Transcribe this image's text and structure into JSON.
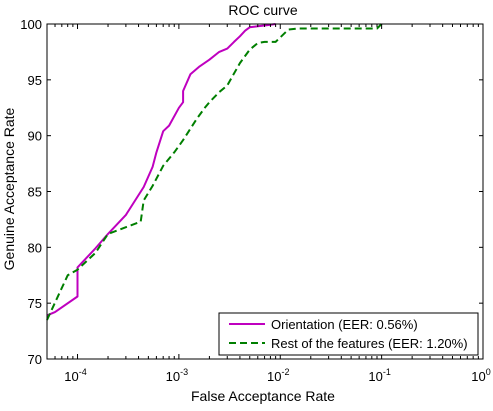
{
  "chart_data": {
    "type": "line",
    "title": "ROC curve",
    "xlabel": "False Acceptance Rate",
    "ylabel": "Genuine Acceptance Rate",
    "xscale": "log",
    "xlim": [
      5e-05,
      1
    ],
    "ylim": [
      70,
      100
    ],
    "x_ticks": [
      {
        "value": 0.0001,
        "base": "10",
        "exp": "-4"
      },
      {
        "value": 0.001,
        "base": "10",
        "exp": "-3"
      },
      {
        "value": 0.01,
        "base": "10",
        "exp": "-2"
      },
      {
        "value": 0.1,
        "base": "10",
        "exp": "-1"
      },
      {
        "value": 1,
        "base": "10",
        "exp": "0"
      }
    ],
    "y_ticks": [
      {
        "value": 70,
        "label": "70"
      },
      {
        "value": 75,
        "label": "75"
      },
      {
        "value": 80,
        "label": "80"
      },
      {
        "value": 85,
        "label": "85"
      },
      {
        "value": 90,
        "label": "90"
      },
      {
        "value": 95,
        "label": "95"
      },
      {
        "value": 100,
        "label": "100"
      }
    ],
    "grid": false,
    "legend_position": "bottom-right",
    "series": [
      {
        "name": "Orientation (EER: 0.56%)",
        "color": "#bf00bf",
        "style": "solid",
        "x": [
          5e-05,
          6e-05,
          0.0001,
          0.0001,
          0.00015,
          0.0002,
          0.0003,
          0.00045,
          0.00055,
          0.0006,
          0.0007,
          0.0008,
          0.001,
          0.0011,
          0.0011,
          0.0013,
          0.0016,
          0.002,
          0.0025,
          0.003,
          0.0035,
          0.004,
          0.0045,
          0.005,
          0.006,
          0.0075,
          0.009
        ],
        "y": [
          73.9,
          74.2,
          75.6,
          78.2,
          79.9,
          81.2,
          82.9,
          85.4,
          87.2,
          88.5,
          90.4,
          90.9,
          92.5,
          93.0,
          94.0,
          95.5,
          96.2,
          96.8,
          97.5,
          97.8,
          98.4,
          98.9,
          99.4,
          99.7,
          99.8,
          99.9,
          100.0
        ]
      },
      {
        "name": "Rest of the features (EER: 1.20%)",
        "color": "#007f00",
        "style": "dashed",
        "x": [
          5e-05,
          8e-05,
          0.0001,
          0.00015,
          0.0002,
          0.0003,
          0.00042,
          0.00045,
          0.00055,
          0.0007,
          0.0009,
          0.0011,
          0.0015,
          0.0018,
          0.002,
          0.0025,
          0.003,
          0.004,
          0.005,
          0.006,
          0.007,
          0.008,
          0.009,
          0.012,
          0.015,
          0.03,
          0.09,
          0.1
        ],
        "y": [
          73.5,
          77.5,
          78.0,
          79.5,
          81.2,
          81.8,
          82.3,
          84.2,
          85.5,
          87.3,
          88.5,
          89.6,
          91.5,
          92.5,
          93.0,
          93.9,
          94.5,
          96.5,
          97.7,
          98.3,
          98.4,
          98.4,
          98.4,
          99.5,
          99.6,
          99.6,
          99.6,
          100.0
        ]
      }
    ]
  }
}
